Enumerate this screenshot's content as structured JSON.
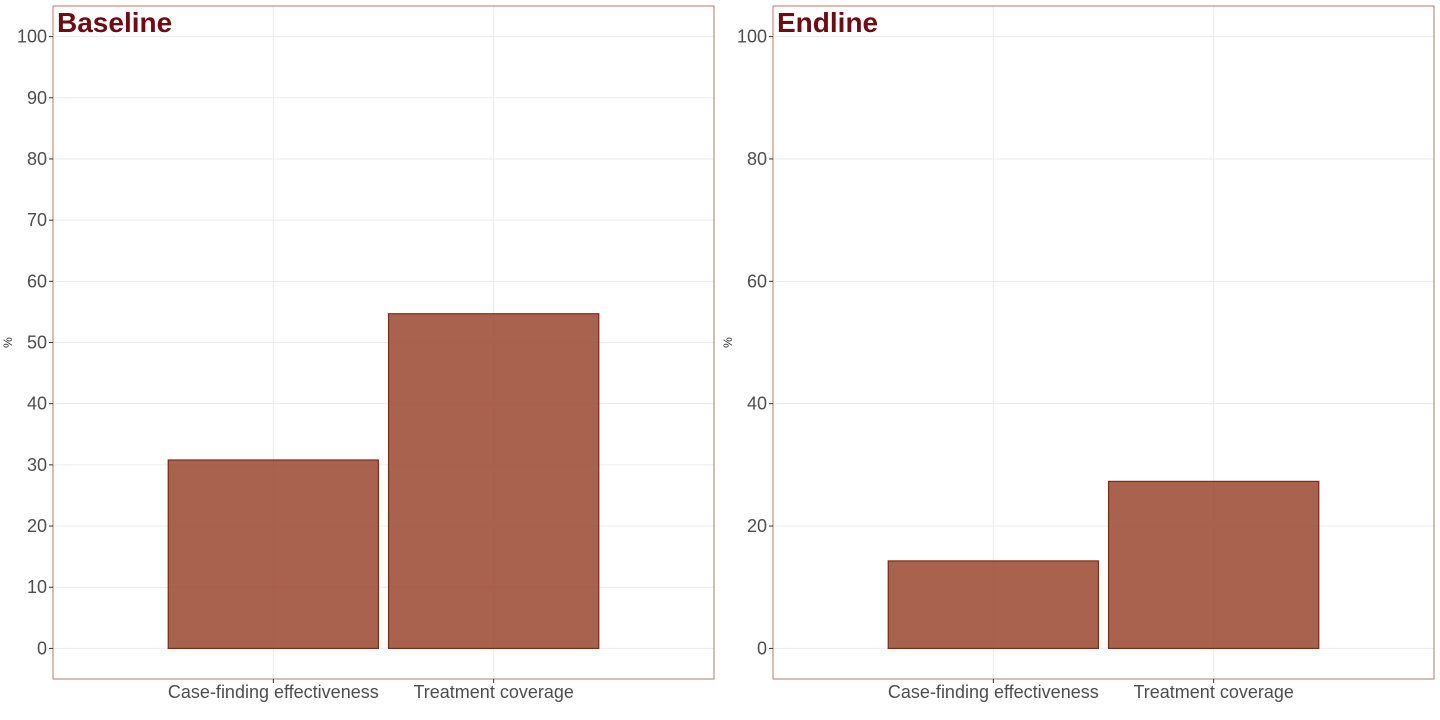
{
  "chart_data": [
    {
      "type": "bar",
      "title": "Baseline",
      "ylabel": "%",
      "xlabel": "",
      "categories": [
        "Case-finding effectiveness",
        "Treatment coverage"
      ],
      "values": [
        30.8,
        54.7
      ],
      "ylim": [
        -5,
        105
      ],
      "yticks": [
        0,
        10,
        20,
        30,
        40,
        50,
        60,
        70,
        80,
        90,
        100
      ],
      "grid": true
    },
    {
      "type": "bar",
      "title": "Endline",
      "ylabel": "%",
      "xlabel": "",
      "categories": [
        "Case-finding effectiveness",
        "Treatment coverage"
      ],
      "values": [
        14.3,
        27.3
      ],
      "ylim": [
        -5,
        105
      ],
      "yticks": [
        0,
        20,
        40,
        60,
        80,
        100
      ],
      "grid": true
    }
  ],
  "colors": {
    "bar_fill": "#a0513a",
    "bar_stroke": "#7a2e17",
    "panel_border": "#b9776a",
    "title": "#6e0b14",
    "grid": "#ebebeb"
  }
}
